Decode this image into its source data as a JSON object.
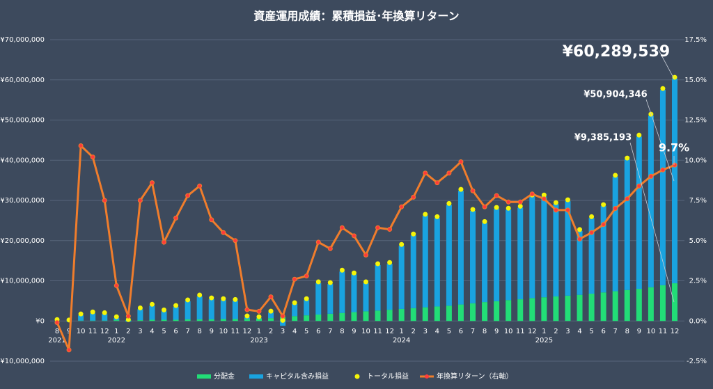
{
  "chart_data": {
    "type": "combo",
    "title": "資産運用成績：累積損益･年換算リターン",
    "categories": [
      "8",
      "9",
      "10",
      "11",
      "12",
      "1",
      "2",
      "3",
      "4",
      "5",
      "6",
      "7",
      "8",
      "9",
      "10",
      "11",
      "12",
      "1",
      "2",
      "3",
      "4",
      "5",
      "6",
      "7",
      "8",
      "9",
      "10",
      "11",
      "12",
      "1",
      "2",
      "3",
      "4",
      "5",
      "6",
      "7",
      "8",
      "9",
      "10",
      "11",
      "12",
      "1",
      "2",
      "3",
      "4",
      "5",
      "6",
      "7",
      "8",
      "9",
      "10",
      "11",
      "12"
    ],
    "years": [
      "2021",
      null,
      null,
      null,
      null,
      "2022",
      null,
      null,
      null,
      null,
      null,
      null,
      null,
      null,
      null,
      null,
      null,
      "2023",
      null,
      null,
      null,
      null,
      null,
      null,
      null,
      null,
      null,
      null,
      null,
      "2024",
      null,
      null,
      null,
      null,
      null,
      null,
      null,
      null,
      null,
      null,
      null,
      "2025",
      null,
      null,
      null,
      null,
      null,
      null,
      null,
      null,
      null,
      null,
      null
    ],
    "ylim": [
      -10000000,
      70000000
    ],
    "yticks": [
      {
        "value": -10000000,
        "label": "-¥10,000,000"
      },
      {
        "value": 0,
        "label": "¥0"
      },
      {
        "value": 10000000,
        "label": "¥10,000,000"
      },
      {
        "value": 20000000,
        "label": "¥20,000,000"
      },
      {
        "value": 30000000,
        "label": "¥30,000,000"
      },
      {
        "value": 40000000,
        "label": "¥40,000,000"
      },
      {
        "value": 50000000,
        "label": "¥50,000,000"
      },
      {
        "value": 60000000,
        "label": "¥60,000,000"
      },
      {
        "value": 70000000,
        "label": "¥70,000,000"
      }
    ],
    "y2lim": [
      -2.5,
      17.5
    ],
    "y2ticks": [
      {
        "value": -2.5,
        "label": "-2.5%"
      },
      {
        "value": 0,
        "label": "0.0%"
      },
      {
        "value": 2.5,
        "label": "2.5%"
      },
      {
        "value": 5,
        "label": "5.0%"
      },
      {
        "value": 7.5,
        "label": "7.5%"
      },
      {
        "value": 10,
        "label": "10.0%"
      },
      {
        "value": 12.5,
        "label": "12.5%"
      },
      {
        "value": 15,
        "label": "15.0%"
      },
      {
        "value": 17.5,
        "label": "17.5%"
      }
    ],
    "grid": true,
    "legend": "bottom",
    "series": [
      {
        "name": "分配金",
        "type": "bar",
        "color": "#22dd77",
        "values": [
          0,
          0,
          100000,
          100000,
          100000,
          200000,
          200000,
          200000,
          300000,
          300000,
          300000,
          400000,
          400000,
          400000,
          500000,
          500000,
          500000,
          600000,
          700000,
          1000000,
          1200000,
          1400000,
          1600000,
          1800000,
          2000000,
          2200000,
          2400000,
          2600000,
          2800000,
          3000000,
          3200000,
          3400000,
          3600000,
          3800000,
          4100000,
          4400000,
          4700000,
          4900000,
          5200000,
          5400000,
          5700000,
          5900000,
          6100000,
          6300000,
          6500000,
          6800000,
          7100000,
          7400000,
          7700000,
          8000000,
          8400000,
          8900000,
          9385193
        ],
        "value_labels": [
          null,
          null,
          null,
          null,
          null,
          null,
          null,
          null,
          null,
          null,
          null,
          null,
          null,
          null,
          null,
          null,
          null,
          null,
          null,
          null,
          null,
          null,
          null,
          null,
          null,
          null,
          null,
          null,
          null,
          null,
          null,
          null,
          null,
          null,
          null,
          null,
          null,
          null,
          null,
          null,
          null,
          null,
          null,
          null,
          null,
          null,
          null,
          null,
          null,
          null,
          null,
          null,
          "¥9,385,193"
        ]
      },
      {
        "name": "キャピタル含み損益",
        "type": "bar",
        "color": "#19a3e0",
        "values": [
          0,
          -100000,
          1300000,
          1800000,
          1600000,
          500000,
          -200000,
          2700000,
          3500000,
          2100000,
          3200000,
          4500000,
          5700000,
          5000000,
          4700000,
          4500000,
          400000,
          100000,
          1400000,
          -1200000,
          3000000,
          3800000,
          7800000,
          7400000,
          10300000,
          9400000,
          7000000,
          11300000,
          11400000,
          15700000,
          18100000,
          22800000,
          22000000,
          25100000,
          28300000,
          23000000,
          19700000,
          23000000,
          22500000,
          22800000,
          25300000,
          25100000,
          23000000,
          23500000,
          15900000,
          18800000,
          21500000,
          28500000,
          32500000,
          37900000,
          42700000,
          48600000,
          50904346
        ],
        "value_labels": [
          null,
          null,
          null,
          null,
          null,
          null,
          null,
          null,
          null,
          null,
          null,
          null,
          null,
          null,
          null,
          null,
          null,
          null,
          null,
          null,
          null,
          null,
          null,
          null,
          null,
          null,
          null,
          null,
          null,
          null,
          null,
          null,
          null,
          null,
          null,
          null,
          null,
          null,
          null,
          null,
          null,
          null,
          null,
          null,
          null,
          null,
          null,
          null,
          null,
          null,
          null,
          null,
          "¥50,904,346"
        ]
      },
      {
        "name": "トータル損益",
        "type": "scatter",
        "color": "#f5f50a",
        "values": [
          0,
          -100000,
          1400000,
          1900000,
          1700000,
          700000,
          0,
          2900000,
          3800000,
          2400000,
          3500000,
          4900000,
          6100000,
          5400000,
          5200000,
          5000000,
          900000,
          700000,
          2100000,
          -200000,
          4200000,
          5200000,
          9400000,
          9200000,
          12300000,
          11600000,
          9400000,
          13900000,
          14200000,
          18700000,
          21300000,
          26200000,
          25600000,
          28900000,
          32400000,
          27400000,
          24400000,
          27900000,
          27700000,
          28200000,
          31000000,
          31000000,
          29100000,
          29800000,
          22400000,
          25600000,
          28600000,
          35900000,
          40200000,
          45900000,
          51100000,
          57500000,
          60289539
        ],
        "value_labels": [
          null,
          null,
          null,
          null,
          null,
          null,
          null,
          null,
          null,
          null,
          null,
          null,
          null,
          null,
          null,
          null,
          null,
          null,
          null,
          null,
          null,
          null,
          null,
          null,
          null,
          null,
          null,
          null,
          null,
          null,
          null,
          null,
          null,
          null,
          null,
          null,
          null,
          null,
          null,
          null,
          null,
          null,
          null,
          null,
          null,
          null,
          null,
          null,
          null,
          null,
          null,
          null,
          "¥60,289,539"
        ]
      },
      {
        "name": "年換算リターン（右軸）",
        "type": "line",
        "axis": "y2",
        "color": "#f07d2c",
        "marker_color": "#ff3b3b",
        "values": [
          -0.1,
          -1.8,
          10.9,
          10.2,
          7.5,
          2.2,
          0.3,
          7.5,
          8.6,
          4.9,
          6.4,
          7.8,
          8.4,
          6.3,
          5.5,
          5.0,
          0.7,
          0.6,
          1.5,
          0.3,
          2.6,
          2.8,
          4.9,
          4.5,
          5.8,
          5.3,
          4.1,
          5.8,
          5.7,
          7.1,
          7.7,
          9.2,
          8.6,
          9.2,
          9.9,
          8.1,
          7.1,
          7.8,
          7.4,
          7.4,
          7.9,
          7.6,
          6.9,
          6.9,
          5.1,
          5.5,
          6.0,
          7.0,
          7.6,
          8.4,
          9.0,
          9.4,
          9.7
        ],
        "value_labels": [
          null,
          null,
          null,
          null,
          null,
          null,
          null,
          null,
          null,
          null,
          null,
          null,
          null,
          null,
          null,
          null,
          null,
          null,
          null,
          null,
          null,
          null,
          null,
          null,
          null,
          null,
          null,
          null,
          null,
          null,
          null,
          null,
          null,
          null,
          null,
          null,
          null,
          null,
          null,
          null,
          null,
          null,
          null,
          null,
          null,
          null,
          null,
          null,
          null,
          null,
          null,
          null,
          "9.7%"
        ]
      }
    ]
  }
}
